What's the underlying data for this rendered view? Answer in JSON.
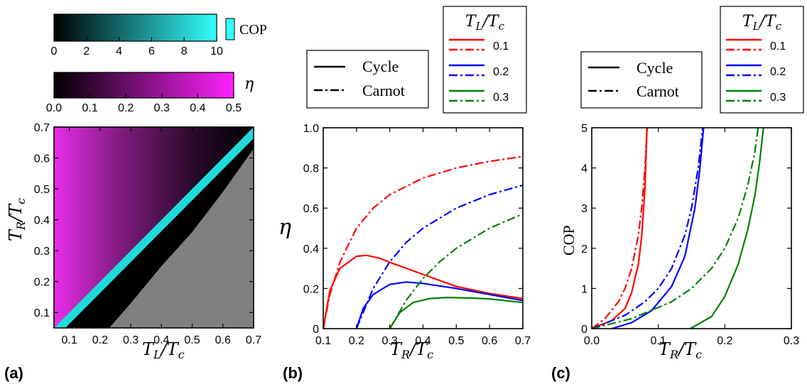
{
  "colors": {
    "cop_max": "#33ffff",
    "eta_max": "#ff22ff",
    "undefined_region": "#808080",
    "red": "#ff0000",
    "blue": "#0000ff",
    "green": "#008000"
  },
  "colorbars": {
    "cop": {
      "label": "COP",
      "ticks": [
        "0",
        "2",
        "4",
        "6",
        "8",
        "10"
      ],
      "range": [
        0,
        10
      ]
    },
    "eta": {
      "label": "η",
      "ticks": [
        "0.0",
        "0.1",
        "0.2",
        "0.3",
        "0.4",
        "0.5"
      ],
      "range": [
        0,
        0.5
      ]
    }
  },
  "panels": {
    "a": {
      "label": "(a)"
    },
    "b": {
      "label": "(b)"
    },
    "c": {
      "label": "(c)"
    }
  },
  "legends": {
    "style": {
      "cycle": "Cycle",
      "carnot": "Carnot"
    },
    "series_title": "T_L/T_c",
    "series": [
      "0.1",
      "0.2",
      "0.3"
    ]
  },
  "chart_data": [
    {
      "type": "heatmap",
      "panel": "a",
      "xlabel": "T_L/T_c",
      "ylabel": "T_R/T_c",
      "xlim": [
        0.05,
        0.7
      ],
      "ylim": [
        0.05,
        0.7
      ],
      "xticks": [
        "0.1",
        "0.2",
        "0.3",
        "0.4",
        "0.5",
        "0.6",
        "0.7"
      ],
      "yticks": [
        "0.1",
        "0.2",
        "0.3",
        "0.4",
        "0.5",
        "0.6",
        "0.7"
      ],
      "region_above_diagonal": "eta",
      "region_below_diagonal": "COP",
      "undefined_boundary": [
        [
          0.23,
          0.05
        ],
        [
          0.3,
          0.13
        ],
        [
          0.4,
          0.25
        ],
        [
          0.5,
          0.36
        ],
        [
          0.6,
          0.49
        ],
        [
          0.7,
          0.63
        ]
      ]
    },
    {
      "type": "line",
      "panel": "b",
      "xlabel": "T_R/T_c",
      "ylabel": "η",
      "xlim": [
        0.1,
        0.7
      ],
      "ylim": [
        0,
        1.0
      ],
      "xticks": [
        "0.1",
        "0.2",
        "0.3",
        "0.4",
        "0.5",
        "0.6",
        "0.7"
      ],
      "yticks": [
        "0",
        "0.2",
        "0.4",
        "0.6",
        "0.8",
        "1.0"
      ],
      "series": [
        {
          "name": "0.1",
          "style": "Cycle",
          "color": "#ff0000",
          "x": [
            0.1,
            0.12,
            0.15,
            0.2,
            0.23,
            0.27,
            0.3,
            0.4,
            0.5,
            0.6,
            0.7
          ],
          "y": [
            0,
            0.19,
            0.3,
            0.36,
            0.365,
            0.35,
            0.33,
            0.27,
            0.21,
            0.175,
            0.15
          ]
        },
        {
          "name": "0.1",
          "style": "Carnot",
          "color": "#ff0000",
          "x": [
            0.1,
            0.12,
            0.15,
            0.2,
            0.25,
            0.3,
            0.4,
            0.5,
            0.6,
            0.7
          ],
          "y": [
            0,
            0.17,
            0.33,
            0.5,
            0.6,
            0.667,
            0.75,
            0.8,
            0.833,
            0.857
          ]
        },
        {
          "name": "0.2",
          "style": "Cycle",
          "color": "#0000ff",
          "x": [
            0.2,
            0.22,
            0.25,
            0.3,
            0.35,
            0.4,
            0.5,
            0.6,
            0.7
          ],
          "y": [
            0,
            0.1,
            0.17,
            0.22,
            0.232,
            0.225,
            0.2,
            0.17,
            0.14
          ]
        },
        {
          "name": "0.2",
          "style": "Carnot",
          "color": "#0000ff",
          "x": [
            0.2,
            0.25,
            0.3,
            0.35,
            0.4,
            0.5,
            0.6,
            0.7
          ],
          "y": [
            0,
            0.2,
            0.333,
            0.43,
            0.5,
            0.6,
            0.667,
            0.714
          ]
        },
        {
          "name": "0.3",
          "style": "Cycle",
          "color": "#008000",
          "x": [
            0.3,
            0.33,
            0.37,
            0.42,
            0.47,
            0.55,
            0.6,
            0.7
          ],
          "y": [
            0,
            0.08,
            0.13,
            0.15,
            0.155,
            0.152,
            0.148,
            0.13
          ]
        },
        {
          "name": "0.3",
          "style": "Carnot",
          "color": "#008000",
          "x": [
            0.3,
            0.35,
            0.4,
            0.45,
            0.5,
            0.6,
            0.7
          ],
          "y": [
            0,
            0.143,
            0.25,
            0.333,
            0.4,
            0.5,
            0.571
          ]
        }
      ]
    },
    {
      "type": "line",
      "panel": "c",
      "xlabel": "T_R/T_c",
      "ylabel": "COP",
      "xlim": [
        0,
        0.3
      ],
      "ylim": [
        0,
        5
      ],
      "xticks": [
        "0.0",
        "0.1",
        "0.2",
        "0.3"
      ],
      "yticks": [
        "0",
        "1",
        "2",
        "3",
        "4",
        "5"
      ],
      "series": [
        {
          "name": "0.1",
          "style": "Cycle",
          "color": "#ff0000",
          "x": [
            0,
            0.03,
            0.05,
            0.06,
            0.07,
            0.075,
            0.08,
            0.083
          ],
          "y": [
            0,
            0.2,
            0.5,
            0.9,
            1.6,
            2.3,
            3.5,
            5.0
          ]
        },
        {
          "name": "0.1",
          "style": "Carnot",
          "color": "#ff0000",
          "x": [
            0,
            0.02,
            0.04,
            0.05,
            0.06,
            0.07,
            0.075,
            0.08,
            0.0833
          ],
          "y": [
            0,
            0.25,
            0.67,
            1.0,
            1.5,
            2.33,
            3.0,
            4.0,
            5.0
          ]
        },
        {
          "name": "0.2",
          "style": "Cycle",
          "color": "#0000ff",
          "x": [
            0.03,
            0.06,
            0.09,
            0.12,
            0.14,
            0.155,
            0.162,
            0.168
          ],
          "y": [
            0,
            0.15,
            0.45,
            1.05,
            1.8,
            3.0,
            3.9,
            5.0
          ]
        },
        {
          "name": "0.2",
          "style": "Carnot",
          "color": "#0000ff",
          "x": [
            0,
            0.05,
            0.08,
            0.1,
            0.12,
            0.14,
            0.15,
            0.16,
            0.1667
          ],
          "y": [
            0,
            0.33,
            0.67,
            1.0,
            1.5,
            2.33,
            3.0,
            4.0,
            5.0
          ]
        },
        {
          "name": "0.3",
          "style": "Cycle",
          "color": "#008000",
          "x": [
            0.148,
            0.18,
            0.2,
            0.22,
            0.235,
            0.245,
            0.252,
            0.258
          ],
          "y": [
            0,
            0.3,
            0.8,
            1.6,
            2.5,
            3.3,
            4.1,
            5.0
          ]
        },
        {
          "name": "0.3",
          "style": "Carnot",
          "color": "#008000",
          "x": [
            0,
            0.06,
            0.12,
            0.15,
            0.18,
            0.2,
            0.22,
            0.235,
            0.245,
            0.25
          ],
          "y": [
            0,
            0.25,
            0.67,
            1.0,
            1.5,
            2.0,
            2.75,
            3.6,
            4.4,
            5.0
          ]
        }
      ]
    }
  ]
}
